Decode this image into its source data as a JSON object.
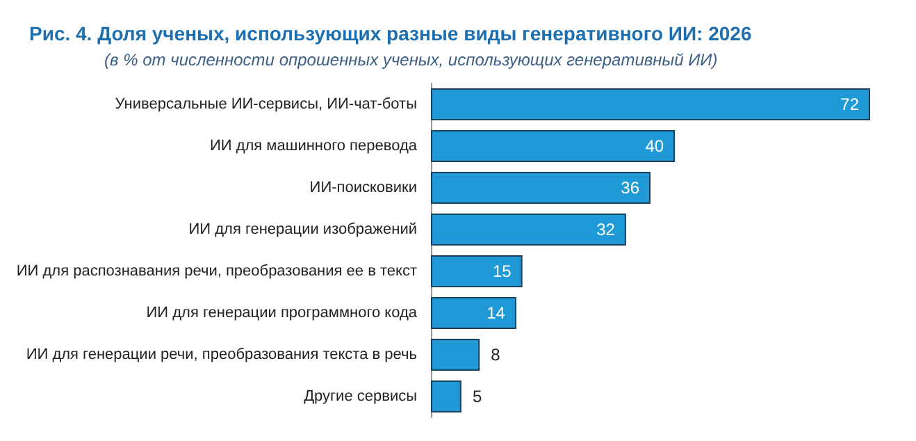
{
  "chart_data": {
    "type": "bar",
    "orientation": "horizontal",
    "title": "Рис. 4. Доля ученых, использующих разные виды генеративного ИИ: 2026",
    "subtitle": "(в % от численности опрошенных ученых, использующих генеративный ИИ)",
    "categories": [
      "Универсальные ИИ-сервисы, ИИ-чат-боты",
      "ИИ для машинного перевода",
      "ИИ-поисковики",
      "ИИ для генерации изображений",
      "ИИ для распознавания речи, преобразования ее в текст",
      "ИИ для генерации программного кода",
      "ИИ для генерации речи, преобразования текста в речь",
      "Другие сервисы"
    ],
    "values": [
      72,
      40,
      36,
      32,
      15,
      14,
      8,
      5
    ],
    "color": "#1f9ad7",
    "data_labels": true
  }
}
